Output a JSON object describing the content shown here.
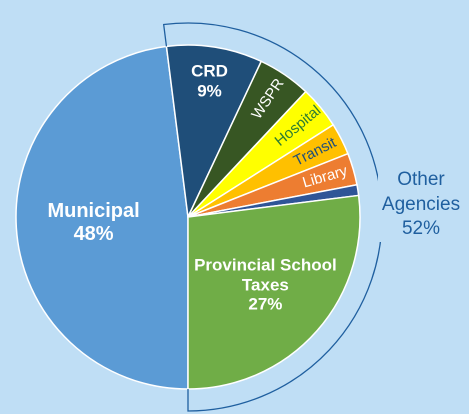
{
  "chart_data": {
    "type": "pie",
    "categories": [
      "Municipal",
      "CRD",
      "WSPR",
      "Hospital",
      "Transit",
      "Library",
      null,
      "Provincial School Taxes"
    ],
    "values": [
      48,
      9,
      5,
      4,
      3,
      3,
      1,
      27
    ],
    "value_labels": [
      "48%",
      "9%",
      null,
      null,
      null,
      null,
      null,
      "27%"
    ],
    "colors": [
      "#5b9bd5",
      "#1f4e79",
      "#375623",
      "#ffff00",
      "#ffc000",
      "#ed7d31",
      "#2f5597",
      "#70ad47"
    ],
    "label_colors": [
      "#ffffff",
      "#ffffff",
      "#ffffff",
      "#2e7d32",
      "#1f4e79",
      "#ffffff",
      "#ffffff",
      "#ffffff"
    ],
    "group": {
      "name": "Other Agencies",
      "value": 52,
      "value_label": "52%",
      "color": "#1f5f9f"
    }
  }
}
